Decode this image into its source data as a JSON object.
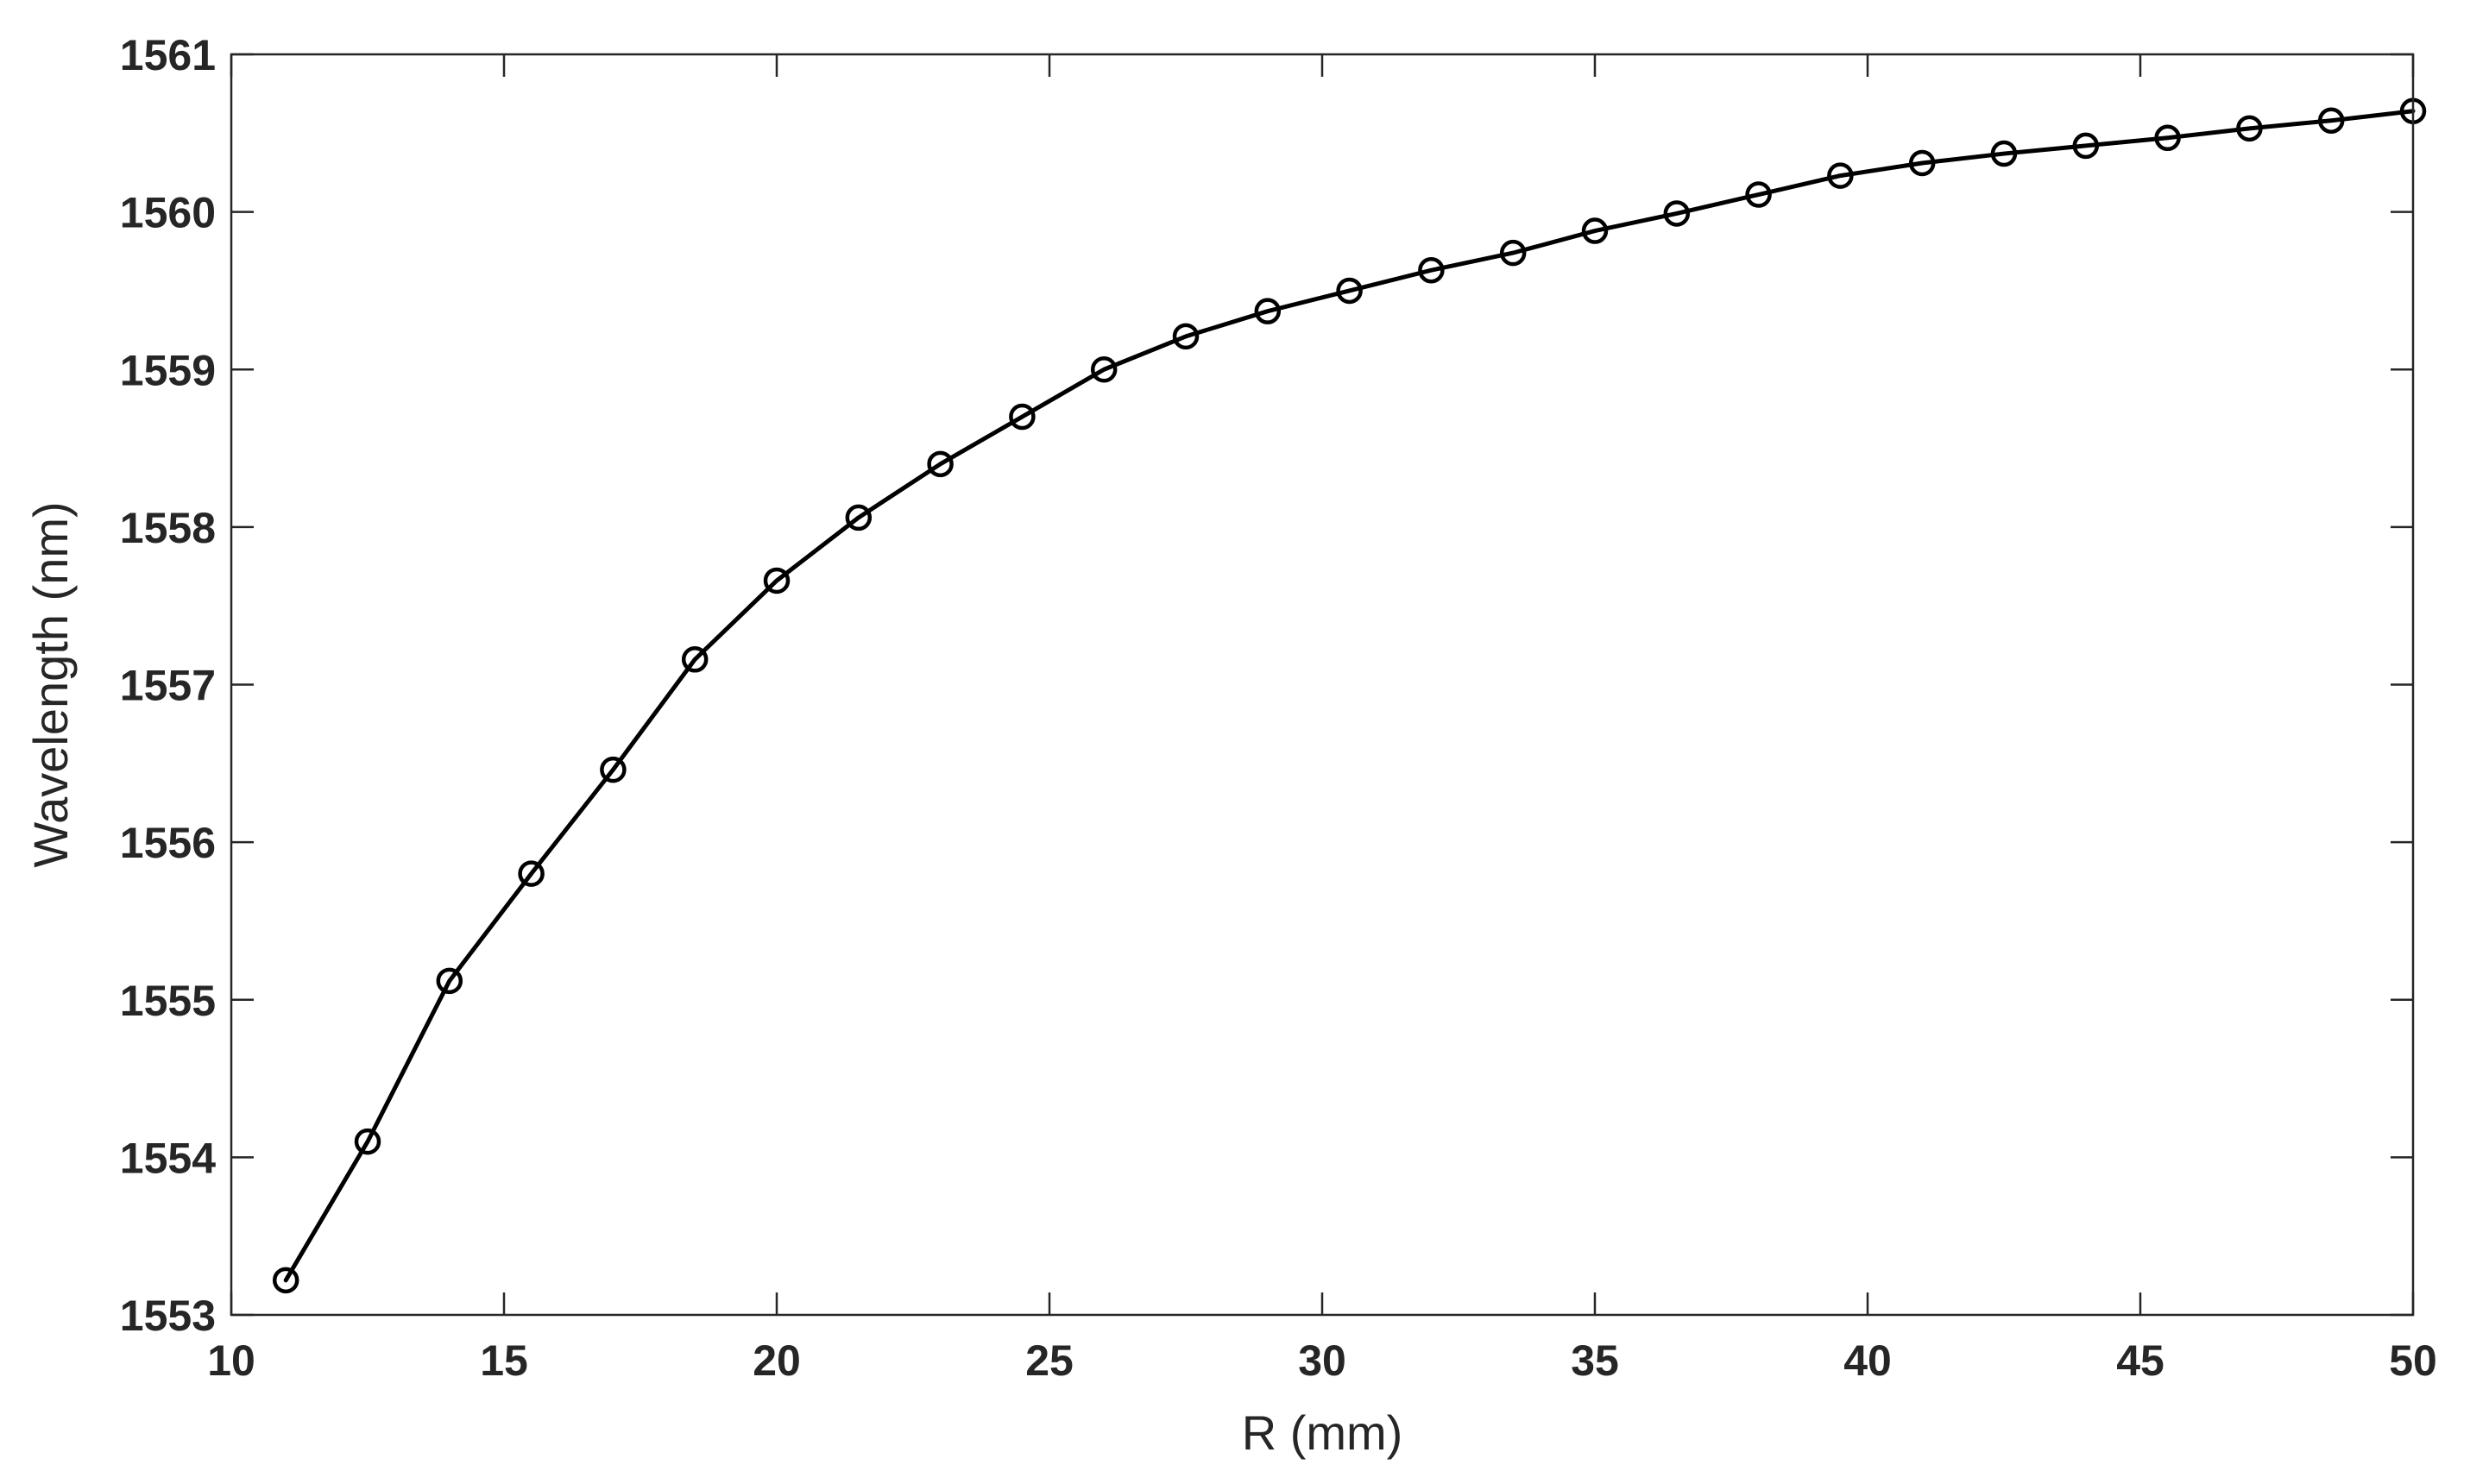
{
  "chart_data": {
    "type": "line",
    "title": "",
    "xlabel": "R (mm)",
    "ylabel": "Wavelength (nm)",
    "xlim": [
      10,
      50
    ],
    "ylim": [
      1553,
      1561
    ],
    "xticks": [
      10,
      15,
      20,
      25,
      30,
      35,
      40,
      45,
      50
    ],
    "yticks": [
      1553,
      1554,
      1555,
      1556,
      1557,
      1558,
      1559,
      1560,
      1561
    ],
    "grid": false,
    "legend": "none",
    "box": true,
    "marker": "circle",
    "line_color": "#000000",
    "axis_color": "#262626",
    "series": [
      {
        "x": [
          11,
          12.5,
          14,
          15.5,
          17,
          18.5,
          20,
          21.5,
          23,
          24.5,
          26,
          27.5,
          29,
          30.5,
          32,
          33.5,
          35,
          36.5,
          38,
          39.5,
          41,
          42.5,
          44,
          45.5,
          47,
          48.5,
          50
        ],
        "y": [
          1553.22,
          1554.1,
          1555.12,
          1555.8,
          1556.46,
          1557.16,
          1557.66,
          1558.06,
          1558.4,
          1558.7,
          1559.0,
          1559.21,
          1559.37,
          1559.5,
          1559.63,
          1559.74,
          1559.88,
          1559.99,
          1560.11,
          1560.23,
          1560.31,
          1560.37,
          1560.42,
          1560.47,
          1560.53,
          1560.58,
          1560.64
        ]
      }
    ]
  }
}
